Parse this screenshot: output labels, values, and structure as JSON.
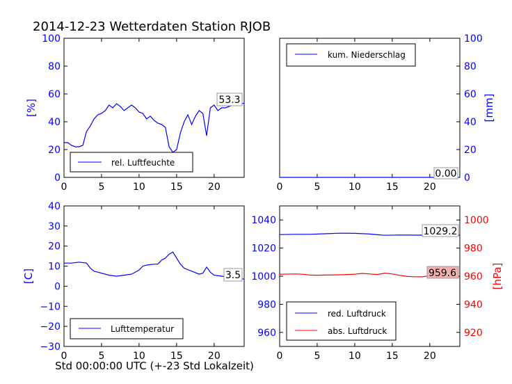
{
  "figure": {
    "title": "2014-12-23 Wetterdaten Station RJOB"
  },
  "colors": {
    "blue": "#0000ff",
    "red": "#ff0000",
    "black": "#000000",
    "red_label_bg": "#f4b0b0"
  },
  "chart_data": [
    {
      "id": "humidity",
      "type": "line",
      "ylabel": "[%]",
      "xlim": [
        0,
        24
      ],
      "ylim": [
        0,
        100
      ],
      "xticks": [
        "0",
        "5",
        "10",
        "15",
        "20"
      ],
      "yticks": [
        "0",
        "20",
        "40",
        "60",
        "80",
        "100"
      ],
      "legend": {
        "placement": "lower-left",
        "entries": [
          "rel. Luftfeuchte"
        ]
      },
      "last_value_label": "53.3",
      "series": [
        {
          "name": "rel. Luftfeuchte",
          "color": "#0000ff",
          "x": [
            0,
            0.5,
            1,
            1.5,
            2,
            2.5,
            3,
            3.5,
            4,
            4.5,
            5,
            5.5,
            6,
            6.5,
            7,
            7.5,
            8,
            8.5,
            9,
            9.5,
            10,
            10.5,
            11,
            11.5,
            12,
            12.5,
            13,
            13.5,
            14,
            14.5,
            15,
            15.5,
            16,
            16.5,
            17,
            17.5,
            18,
            18.5,
            19,
            19.5,
            20,
            20.5,
            21,
            21.5,
            22,
            22.5,
            23,
            23.5,
            24
          ],
          "y": [
            25,
            25,
            23,
            22,
            22,
            23,
            33,
            37,
            42,
            45,
            46,
            48,
            52,
            50,
            53,
            51,
            48,
            50,
            52,
            50,
            47,
            46,
            42,
            44,
            41,
            39,
            38,
            36,
            22,
            18,
            20,
            32,
            40,
            45,
            38,
            44,
            48,
            46,
            30,
            50,
            52,
            48,
            50,
            50,
            51,
            52,
            52,
            53,
            53.3
          ]
        }
      ]
    },
    {
      "id": "precip",
      "type": "line",
      "ylabel": "[mm]",
      "y_axis_side": "right",
      "xlim": [
        0,
        24
      ],
      "ylim": [
        0,
        100
      ],
      "xticks": [
        "0",
        "5",
        "10",
        "15",
        "20"
      ],
      "yticks": [
        "0",
        "20",
        "40",
        "60",
        "80",
        "100"
      ],
      "legend": {
        "placement": "upper-left",
        "entries": [
          "kum. Niederschlag"
        ]
      },
      "last_value_label": "0.00",
      "series": [
        {
          "name": "kum. Niederschlag",
          "color": "#0000ff",
          "x": [
            0,
            24
          ],
          "y": [
            0,
            0
          ]
        }
      ]
    },
    {
      "id": "temperature",
      "type": "line",
      "xlabel": "Std 00:00:00 UTC (+-23 Std Lokalzeit)",
      "ylabel": "[C]",
      "xlim": [
        0,
        24
      ],
      "ylim": [
        -30,
        40
      ],
      "xticks": [
        "0",
        "5",
        "10",
        "15",
        "20"
      ],
      "yticks": [
        "−30",
        "−20",
        "−10",
        "0",
        "10",
        "20",
        "30",
        "40"
      ],
      "legend": {
        "placement": "lower-left",
        "entries": [
          "Lufttemperatur"
        ]
      },
      "last_value_label": "3.5",
      "series": [
        {
          "name": "Lufttemperatur",
          "color": "#0000ff",
          "x": [
            0,
            1,
            2,
            3,
            3.5,
            4,
            4.5,
            5,
            6,
            7,
            8,
            9,
            10,
            10.5,
            11,
            12,
            12.5,
            13,
            13.5,
            14,
            14.5,
            15,
            15.5,
            16,
            17,
            18,
            18.5,
            19,
            19.5,
            20,
            21,
            22,
            23,
            24
          ],
          "y": [
            11.5,
            11.5,
            12,
            11.5,
            9,
            7.5,
            7,
            6.5,
            5.5,
            5,
            5.5,
            6,
            8,
            10,
            10.5,
            11,
            11,
            13,
            14,
            16,
            17,
            14,
            11,
            9,
            7.5,
            6,
            6.5,
            9.5,
            7,
            5.5,
            5,
            4.5,
            4,
            3.5
          ]
        }
      ]
    },
    {
      "id": "pressure",
      "type": "line",
      "xlim": [
        0,
        24
      ],
      "ylim_left": [
        950,
        1050
      ],
      "ylim_right": [
        910,
        1010
      ],
      "ylabel_right": "[hPa]",
      "xticks": [
        "0",
        "5",
        "10",
        "15",
        "20"
      ],
      "yticks_left": [
        "960",
        "980",
        "1000",
        "1020",
        "1040"
      ],
      "yticks_right": [
        "920",
        "940",
        "960",
        "980",
        "1000"
      ],
      "legend": {
        "placement": "lower-left",
        "entries": [
          "red. Luftdruck",
          "abs. Luftdruck"
        ]
      },
      "last_value_labels": [
        "1029.2",
        "959.6"
      ],
      "series": [
        {
          "name": "red. Luftdruck",
          "color": "#0000ff",
          "axis": "left",
          "x": [
            0,
            2,
            4,
            6,
            8,
            10,
            12,
            13,
            14,
            16,
            18,
            20,
            22,
            24
          ],
          "y": [
            1029.6,
            1029.8,
            1029.8,
            1030.2,
            1030.6,
            1030.5,
            1030,
            1029.5,
            1029.1,
            1029.3,
            1029.2,
            1029.2,
            1029.2,
            1029.2
          ]
        },
        {
          "name": "abs. Luftdruck",
          "color": "#ff0000",
          "axis": "right",
          "x": [
            0,
            2,
            3,
            4,
            5,
            6,
            8,
            9,
            10,
            11,
            12,
            13,
            14,
            15,
            16,
            17,
            18,
            19,
            20,
            22,
            24
          ],
          "y": [
            961.4,
            961.6,
            961.4,
            960.8,
            960.7,
            960.8,
            961,
            961.2,
            961.4,
            962,
            961.6,
            961.2,
            962.2,
            961.6,
            960.6,
            959.8,
            959.6,
            959.5,
            960.4,
            959.6,
            959.6
          ]
        }
      ]
    }
  ]
}
